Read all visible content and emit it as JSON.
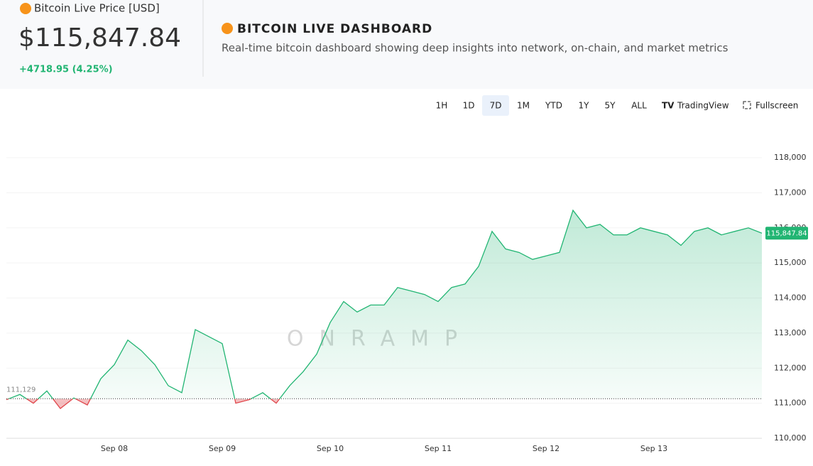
{
  "header": {
    "price_label": "Bitcoin Live Price [USD]",
    "price": "$115,847.84",
    "change": "+4718.95 (4.25%)",
    "title": "BITCOIN LIVE DASHBOARD",
    "subtitle": "Real-time bitcoin dashboard showing deep insights into network, on-chain, and market metrics"
  },
  "toolbar": {
    "ranges": [
      "1H",
      "1D",
      "7D",
      "1M",
      "YTD",
      "1Y",
      "5Y",
      "ALL"
    ],
    "active": "7D",
    "tradingview": "TradingView",
    "fullscreen": "Fullscreen"
  },
  "chart_data": {
    "type": "line",
    "watermark": "ONRAMP",
    "categories": [
      null,
      null,
      null,
      null,
      null,
      null,
      null,
      null,
      "Sep 08",
      null,
      null,
      null,
      null,
      null,
      null,
      null,
      "Sep 09",
      null,
      null,
      null,
      null,
      null,
      null,
      null,
      "Sep 10",
      null,
      null,
      null,
      null,
      null,
      null,
      null,
      "Sep 11",
      null,
      null,
      null,
      null,
      null,
      null,
      null,
      "Sep 12",
      null,
      null,
      null,
      null,
      null,
      null,
      null,
      "Sep 13",
      null,
      null,
      null,
      null,
      null,
      null,
      null,
      null
    ],
    "series": [
      {
        "color": "#22b573",
        "below_color": "#e0474c",
        "values": [
          111100,
          111250,
          111000,
          111350,
          110850,
          111150,
          110950,
          111700,
          112100,
          112800,
          112500,
          112100,
          111500,
          111300,
          113100,
          112900,
          112700,
          111000,
          111100,
          111300,
          111000,
          111500,
          111900,
          112400,
          113300,
          113900,
          113600,
          113800,
          113800,
          114300,
          114200,
          114100,
          113900,
          114300,
          114400,
          114900,
          115900,
          115400,
          115300,
          115100,
          115200,
          115300,
          116500,
          116000,
          116100,
          115800,
          115800,
          116000,
          115900,
          115800,
          115500,
          115900,
          116000,
          115800,
          115900,
          116000,
          115847.84
        ],
        "value_labels": [
          null,
          null,
          null,
          null,
          null,
          null,
          null,
          null,
          null,
          null,
          null,
          null,
          null,
          null,
          null,
          null,
          null,
          null,
          null,
          null,
          null,
          null,
          null,
          null,
          null,
          null,
          null,
          null,
          null,
          null,
          null,
          null,
          null,
          null,
          null,
          null,
          null,
          null,
          null,
          null,
          null,
          null,
          null,
          null,
          null,
          null,
          null,
          null,
          null,
          null,
          null,
          null,
          null,
          null,
          null,
          null,
          "115,847.84"
        ]
      }
    ],
    "baseline": {
      "value": 111129,
      "label": "111,129"
    },
    "ylim": [
      110000,
      118000
    ],
    "yticks": [
      {
        "value": 110000,
        "label": "110,000"
      },
      {
        "value": 111000,
        "label": "111,000"
      },
      {
        "value": 112000,
        "label": "112,000"
      },
      {
        "value": 113000,
        "label": "113,000"
      },
      {
        "value": 114000,
        "label": "114,000"
      },
      {
        "value": 115000,
        "label": "115,000"
      },
      {
        "value": 116000,
        "label": "116,000"
      },
      {
        "value": 117000,
        "label": "117,000"
      },
      {
        "value": 118000,
        "label": "118,000"
      }
    ],
    "grid": true
  }
}
